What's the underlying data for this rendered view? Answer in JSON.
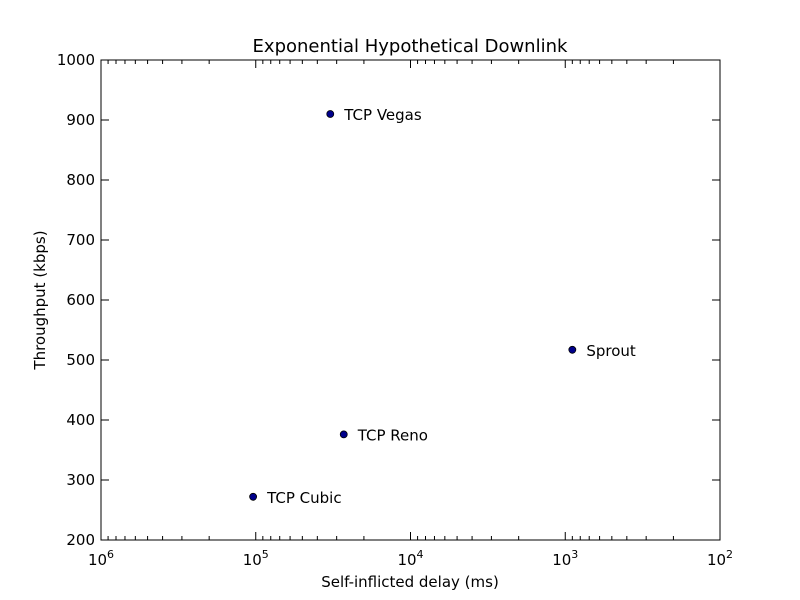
{
  "chart_data": {
    "type": "scatter",
    "title": "Exponential Hypothetical Downlink",
    "xlabel": "Self-inflicted delay (ms)",
    "ylabel": "Throughput (kbps)",
    "x_scale": "log",
    "x_inverted": true,
    "xlim": [
      1000000,
      100
    ],
    "ylim": [
      200,
      1000
    ],
    "x_ticks": [
      1000000,
      100000,
      10000,
      1000,
      100
    ],
    "x_tick_labels": [
      {
        "base": "10",
        "exp": "6"
      },
      {
        "base": "10",
        "exp": "5"
      },
      {
        "base": "10",
        "exp": "4"
      },
      {
        "base": "10",
        "exp": "3"
      },
      {
        "base": "10",
        "exp": "2"
      }
    ],
    "y_ticks": [
      200,
      300,
      400,
      500,
      600,
      700,
      800,
      900,
      1000
    ],
    "y_tick_labels": [
      "200",
      "300",
      "400",
      "500",
      "600",
      "700",
      "800",
      "900",
      "1000"
    ],
    "grid": false,
    "marker_color": "#00008b",
    "points": [
      {
        "label": "TCP Vegas",
        "x": 33000,
        "y": 910
      },
      {
        "label": "Sprout",
        "x": 900,
        "y": 517
      },
      {
        "label": "TCP Reno",
        "x": 27000,
        "y": 376
      },
      {
        "label": "TCP Cubic",
        "x": 104000,
        "y": 272
      }
    ]
  }
}
